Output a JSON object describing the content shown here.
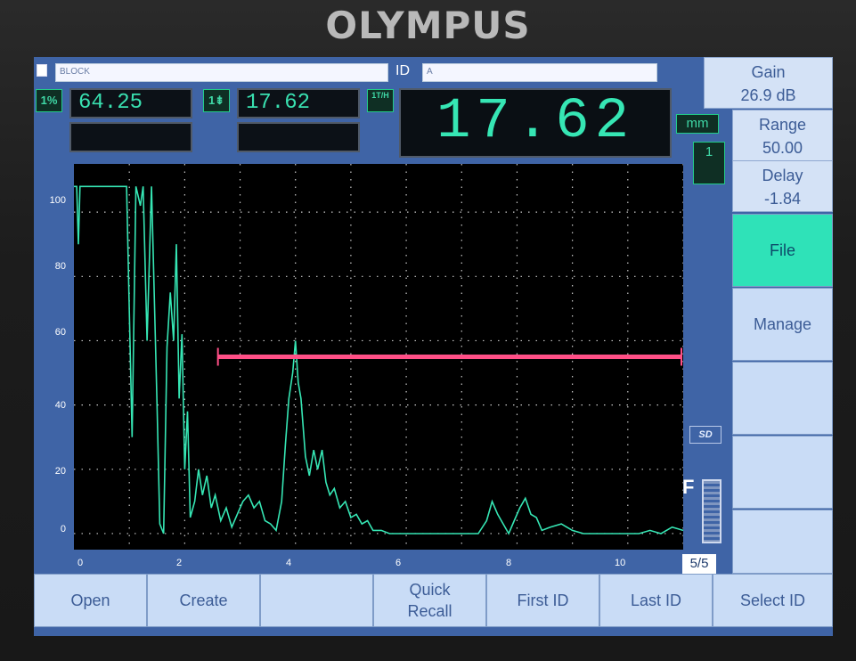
{
  "device": {
    "brand": "OLYMPUS"
  },
  "header": {
    "file_name": "BLOCK",
    "id_label": "ID",
    "id_value": "A"
  },
  "readings": {
    "r1_icon": "1%",
    "r1_value": "64.25",
    "r2_icon": "1⇟",
    "r2_value": "17.62",
    "r3_icon": "1T/H",
    "big_value": "17.62",
    "unit": "mm",
    "probe_label": "1"
  },
  "params": {
    "gain_label": "Gain",
    "gain_value": "26.9 dB",
    "range_label": "Range",
    "range_value": "50.00",
    "delay_label": "Delay",
    "delay_value": "-1.84"
  },
  "side_menu": [
    {
      "label": "File"
    },
    {
      "label": "Manage"
    },
    {
      "label": ""
    },
    {
      "label": ""
    },
    {
      "label": ""
    }
  ],
  "indicators": {
    "sd": "SD",
    "battery": "F",
    "page": "5/5"
  },
  "bottom_menu": [
    {
      "label": "Open"
    },
    {
      "label": "Create"
    },
    {
      "label": ""
    },
    {
      "label": "Quick\nRecall"
    },
    {
      "label": "First ID"
    },
    {
      "label": "Last ID"
    },
    {
      "label": "Select ID"
    }
  ],
  "colors": {
    "screen": "#3f64a6",
    "signal": "#36e6b4",
    "gate": "#ff4f86"
  },
  "chart_data": {
    "type": "line",
    "x_ticks": [
      "0",
      "2",
      "4",
      "6",
      "8",
      "10"
    ],
    "y_ticks": [
      "100",
      "80",
      "60",
      "40",
      "20",
      "0"
    ],
    "xlim": [
      0,
      11
    ],
    "ylim": [
      -5,
      115
    ],
    "grid": true,
    "gate": {
      "start": 2.6,
      "end": 11,
      "level": 55
    },
    "waveform": [
      [
        0.0,
        108
      ],
      [
        0.05,
        108
      ],
      [
        0.08,
        90
      ],
      [
        0.11,
        108
      ],
      [
        0.5,
        108
      ],
      [
        0.95,
        108
      ],
      [
        1.05,
        30
      ],
      [
        1.12,
        108
      ],
      [
        1.2,
        102
      ],
      [
        1.25,
        108
      ],
      [
        1.32,
        60
      ],
      [
        1.4,
        108
      ],
      [
        1.5,
        40
      ],
      [
        1.55,
        3
      ],
      [
        1.62,
        0
      ],
      [
        1.68,
        58
      ],
      [
        1.74,
        75
      ],
      [
        1.8,
        60
      ],
      [
        1.85,
        90
      ],
      [
        1.9,
        42
      ],
      [
        1.95,
        62
      ],
      [
        2.0,
        20
      ],
      [
        2.05,
        38
      ],
      [
        2.1,
        5
      ],
      [
        2.18,
        10
      ],
      [
        2.25,
        20
      ],
      [
        2.32,
        12
      ],
      [
        2.4,
        18
      ],
      [
        2.48,
        8
      ],
      [
        2.55,
        12
      ],
      [
        2.65,
        4
      ],
      [
        2.75,
        8
      ],
      [
        2.85,
        2
      ],
      [
        2.95,
        6
      ],
      [
        3.05,
        10
      ],
      [
        3.15,
        12
      ],
      [
        3.25,
        8
      ],
      [
        3.35,
        10
      ],
      [
        3.45,
        4
      ],
      [
        3.55,
        3
      ],
      [
        3.65,
        1
      ],
      [
        3.75,
        10
      ],
      [
        3.82,
        28
      ],
      [
        3.88,
        42
      ],
      [
        3.95,
        50
      ],
      [
        4.0,
        60
      ],
      [
        4.05,
        47
      ],
      [
        4.1,
        42
      ],
      [
        4.18,
        24
      ],
      [
        4.25,
        18
      ],
      [
        4.33,
        26
      ],
      [
        4.4,
        20
      ],
      [
        4.48,
        26
      ],
      [
        4.55,
        16
      ],
      [
        4.62,
        12
      ],
      [
        4.7,
        14
      ],
      [
        4.8,
        8
      ],
      [
        4.9,
        10
      ],
      [
        5.0,
        5
      ],
      [
        5.1,
        6
      ],
      [
        5.2,
        3
      ],
      [
        5.3,
        4
      ],
      [
        5.4,
        1
      ],
      [
        5.55,
        1
      ],
      [
        5.7,
        0
      ],
      [
        6.0,
        0
      ],
      [
        6.5,
        0
      ],
      [
        7.0,
        0
      ],
      [
        7.3,
        0
      ],
      [
        7.45,
        4
      ],
      [
        7.55,
        10
      ],
      [
        7.65,
        6
      ],
      [
        7.75,
        3
      ],
      [
        7.85,
        0
      ],
      [
        7.95,
        4
      ],
      [
        8.05,
        8
      ],
      [
        8.15,
        11
      ],
      [
        8.25,
        6
      ],
      [
        8.35,
        5
      ],
      [
        8.45,
        1
      ],
      [
        8.6,
        2
      ],
      [
        8.8,
        3
      ],
      [
        9.0,
        1
      ],
      [
        9.2,
        0
      ],
      [
        9.5,
        0
      ],
      [
        10.0,
        0
      ],
      [
        10.2,
        0
      ],
      [
        10.4,
        1
      ],
      [
        10.6,
        0
      ],
      [
        10.8,
        2
      ],
      [
        11.0,
        1
      ]
    ]
  }
}
